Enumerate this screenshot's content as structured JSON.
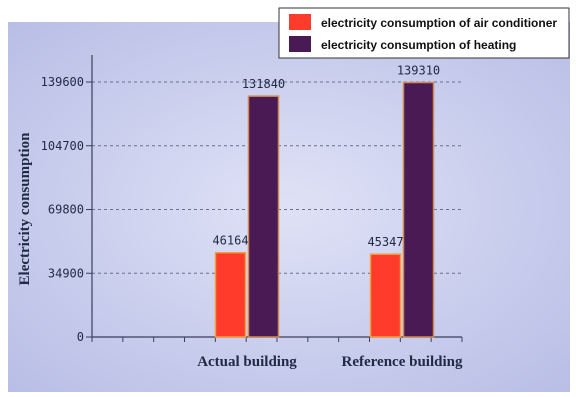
{
  "chart_data": {
    "type": "bar",
    "title": "",
    "xlabel": "",
    "ylabel": "Electricity consumption",
    "categories": [
      "Actual building",
      "Reference building"
    ],
    "series": [
      {
        "name": "electricity consumption of air conditioner",
        "values": [
          46164,
          45347
        ],
        "color": "#ff3b2b",
        "edge": "#f2a040"
      },
      {
        "name": "electricity consumption of heating",
        "values": [
          131840,
          139310
        ],
        "color": "#4a1a55",
        "edge": "#d08a50"
      }
    ],
    "yticks": [
      0,
      34900,
      69800,
      104700,
      139600
    ],
    "ylim": [
      0,
      139600
    ],
    "grid": true,
    "legend_position": "top-right",
    "background": "#cfd3ee"
  }
}
